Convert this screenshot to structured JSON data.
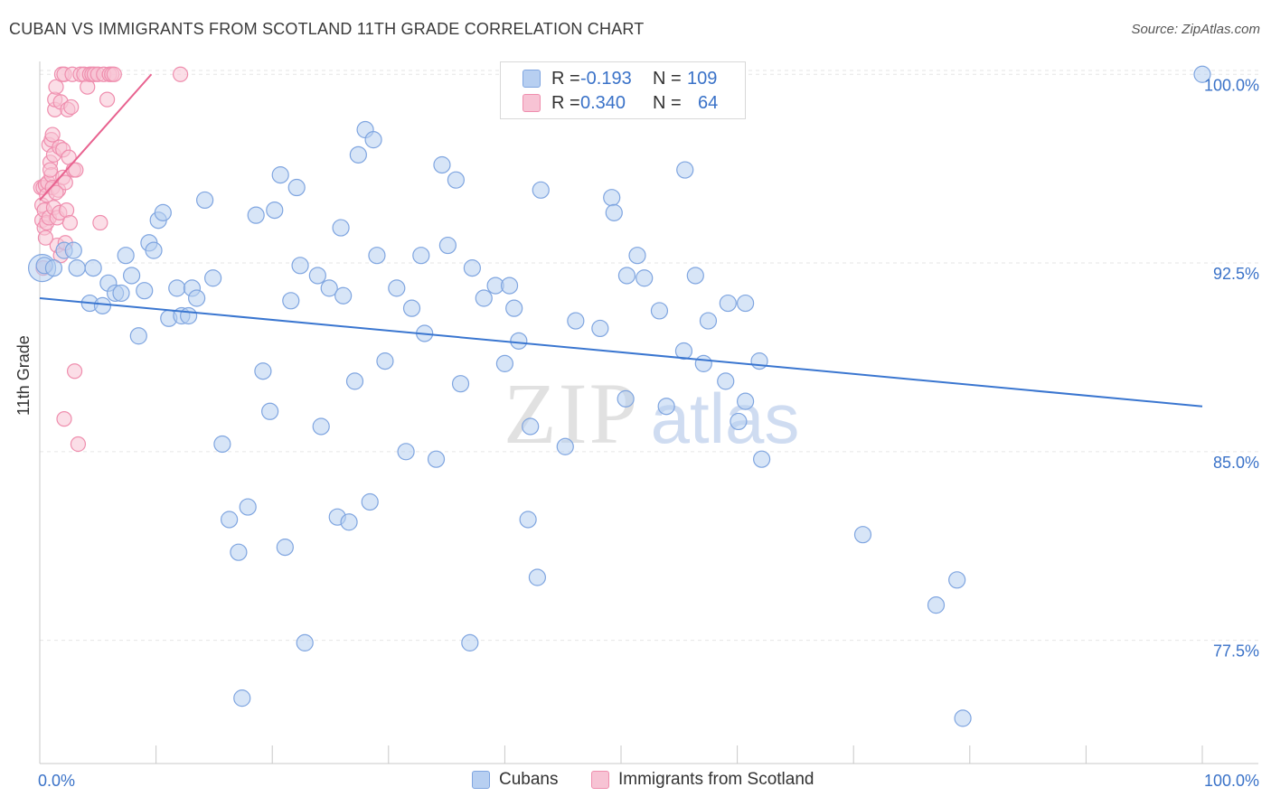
{
  "title": "CUBAN VS IMMIGRANTS FROM SCOTLAND 11TH GRADE CORRELATION CHART",
  "source": "Source: ZipAtlas.com",
  "watermark": {
    "zip": "ZIP",
    "atlas": "atlas"
  },
  "legend": {
    "rows": [
      {
        "r_label": "R =",
        "r_value": "-0.193",
        "n_label": "N =",
        "n_value": "109"
      },
      {
        "r_label": "R =",
        "r_value": "0.340",
        "n_label": "N =",
        "n_value": "64"
      }
    ]
  },
  "bottom_legend": [
    "Cubans",
    "Immigrants from Scotland"
  ],
  "colors": {
    "blue": "#3a76d0",
    "blue_fill": "#b7cff1",
    "blue_stroke": "#7fa5e0",
    "pink": "#e8628f",
    "pink_fill": "#f7c3d4",
    "pink_stroke": "#ef8eae",
    "grid": "#e6e6e6",
    "axis_label": "#3a72c8"
  },
  "chart_data": {
    "type": "scatter",
    "title": "CUBAN VS IMMIGRANTS FROM SCOTLAND 11TH GRADE CORRELATION CHART",
    "xlabel": "",
    "ylabel": "11th Grade",
    "xlim": [
      0,
      100
    ],
    "ylim": [
      72.6,
      100.8
    ],
    "x_tick_labels": [
      "0.0%",
      "100.0%"
    ],
    "y_ticks": [
      77.5,
      85.0,
      92.5,
      100.0
    ],
    "y_tick_labels": [
      "77.5%",
      "85.0%",
      "92.5%",
      "100.0%"
    ],
    "grid": "horizontal dashed",
    "legend_placement": "top-center",
    "series": [
      {
        "name": "Cubans",
        "color": "#3a76d0",
        "r": -0.193,
        "n": 109,
        "trend": {
          "x": [
            0,
            100
          ],
          "y": [
            91.1,
            86.8
          ]
        },
        "points": [
          [
            0.2,
            92.3
          ],
          [
            0.4,
            92.4
          ],
          [
            1.2,
            92.3
          ],
          [
            2.1,
            93.0
          ],
          [
            2.9,
            93.0
          ],
          [
            3.2,
            92.3
          ],
          [
            4.3,
            90.9
          ],
          [
            4.6,
            92.3
          ],
          [
            5.4,
            90.8
          ],
          [
            5.9,
            91.7
          ],
          [
            6.5,
            91.3
          ],
          [
            7.0,
            91.3
          ],
          [
            7.4,
            92.8
          ],
          [
            7.9,
            92.0
          ],
          [
            8.5,
            89.6
          ],
          [
            9.0,
            91.4
          ],
          [
            9.4,
            93.3
          ],
          [
            9.8,
            93.0
          ],
          [
            10.2,
            94.2
          ],
          [
            10.6,
            94.5
          ],
          [
            11.1,
            90.3
          ],
          [
            11.8,
            91.5
          ],
          [
            12.2,
            90.4
          ],
          [
            12.8,
            90.4
          ],
          [
            13.1,
            91.5
          ],
          [
            13.5,
            91.1
          ],
          [
            14.2,
            95.0
          ],
          [
            14.9,
            91.9
          ],
          [
            15.7,
            85.3
          ],
          [
            16.3,
            82.3
          ],
          [
            17.1,
            81.0
          ],
          [
            17.4,
            75.2
          ],
          [
            17.9,
            82.8
          ],
          [
            18.6,
            94.4
          ],
          [
            19.2,
            88.2
          ],
          [
            19.8,
            86.6
          ],
          [
            20.2,
            94.6
          ],
          [
            20.7,
            96.0
          ],
          [
            21.1,
            81.2
          ],
          [
            21.6,
            91.0
          ],
          [
            22.1,
            95.5
          ],
          [
            22.4,
            92.4
          ],
          [
            22.8,
            77.4
          ],
          [
            23.9,
            92.0
          ],
          [
            24.2,
            86.0
          ],
          [
            24.9,
            91.5
          ],
          [
            25.6,
            82.4
          ],
          [
            25.9,
            93.9
          ],
          [
            26.1,
            91.2
          ],
          [
            26.6,
            82.2
          ],
          [
            27.1,
            87.8
          ],
          [
            27.4,
            96.8
          ],
          [
            28.0,
            97.8
          ],
          [
            28.4,
            83.0
          ],
          [
            28.7,
            97.4
          ],
          [
            29.0,
            92.8
          ],
          [
            29.7,
            88.6
          ],
          [
            30.7,
            91.5
          ],
          [
            31.5,
            85.0
          ],
          [
            32.0,
            90.7
          ],
          [
            32.8,
            92.8
          ],
          [
            33.1,
            89.7
          ],
          [
            34.1,
            84.7
          ],
          [
            34.6,
            96.4
          ],
          [
            35.1,
            93.2
          ],
          [
            35.8,
            95.8
          ],
          [
            36.2,
            87.7
          ],
          [
            37.0,
            77.4
          ],
          [
            37.2,
            92.3
          ],
          [
            38.2,
            91.1
          ],
          [
            39.2,
            91.6
          ],
          [
            40.0,
            88.5
          ],
          [
            40.4,
            91.6
          ],
          [
            40.8,
            90.7
          ],
          [
            41.2,
            89.4
          ],
          [
            42.0,
            82.3
          ],
          [
            42.2,
            86.0
          ],
          [
            42.8,
            80.0
          ],
          [
            43.1,
            95.4
          ],
          [
            45.2,
            85.2
          ],
          [
            46.1,
            90.2
          ],
          [
            48.2,
            89.9
          ],
          [
            49.2,
            95.1
          ],
          [
            49.4,
            94.5
          ],
          [
            50.4,
            87.1
          ],
          [
            50.5,
            92.0
          ],
          [
            51.4,
            92.8
          ],
          [
            52.0,
            91.9
          ],
          [
            53.3,
            90.6
          ],
          [
            53.9,
            86.8
          ],
          [
            55.4,
            89.0
          ],
          [
            55.5,
            96.2
          ],
          [
            56.4,
            92.0
          ],
          [
            57.1,
            88.5
          ],
          [
            57.5,
            90.2
          ],
          [
            59.0,
            87.8
          ],
          [
            59.2,
            90.9
          ],
          [
            60.1,
            86.2
          ],
          [
            60.7,
            90.9
          ],
          [
            60.7,
            87.0
          ],
          [
            61.9,
            88.6
          ],
          [
            62.1,
            84.7
          ],
          [
            70.8,
            81.7
          ],
          [
            77.1,
            78.9
          ],
          [
            78.9,
            79.9
          ],
          [
            79.4,
            74.4
          ],
          [
            100.0,
            100.0
          ]
        ]
      },
      {
        "name": "Immigrants from Scotland",
        "color": "#e8628f",
        "r": 0.34,
        "n": 64,
        "trend": {
          "x": [
            0,
            9.6
          ],
          "y": [
            95.0,
            100.0
          ]
        },
        "points": [
          [
            0.1,
            95.5
          ],
          [
            0.2,
            94.8
          ],
          [
            0.2,
            94.2
          ],
          [
            0.3,
            95.5
          ],
          [
            0.4,
            93.9
          ],
          [
            0.4,
            94.6
          ],
          [
            0.5,
            95.6
          ],
          [
            0.6,
            94.1
          ],
          [
            0.6,
            95.2
          ],
          [
            0.7,
            95.7
          ],
          [
            0.8,
            94.3
          ],
          [
            0.8,
            97.2
          ],
          [
            0.9,
            96.5
          ],
          [
            1.0,
            96.0
          ],
          [
            1.0,
            97.4
          ],
          [
            1.1,
            97.6
          ],
          [
            1.1,
            95.5
          ],
          [
            1.2,
            94.7
          ],
          [
            1.2,
            96.8
          ],
          [
            1.3,
            98.6
          ],
          [
            1.3,
            99.0
          ],
          [
            1.4,
            99.5
          ],
          [
            1.5,
            94.3
          ],
          [
            1.5,
            93.2
          ],
          [
            1.6,
            95.4
          ],
          [
            1.7,
            97.1
          ],
          [
            1.7,
            94.5
          ],
          [
            1.8,
            92.8
          ],
          [
            1.8,
            98.9
          ],
          [
            1.9,
            100.0
          ],
          [
            2.0,
            95.9
          ],
          [
            2.0,
            97.0
          ],
          [
            2.1,
            100.0
          ],
          [
            2.1,
            86.3
          ],
          [
            2.2,
            95.7
          ],
          [
            2.2,
            93.3
          ],
          [
            2.3,
            94.6
          ],
          [
            2.4,
            98.6
          ],
          [
            2.5,
            96.7
          ],
          [
            2.6,
            94.1
          ],
          [
            2.7,
            98.7
          ],
          [
            2.8,
            100.0
          ],
          [
            2.9,
            96.2
          ],
          [
            3.0,
            88.2
          ],
          [
            3.1,
            96.2
          ],
          [
            3.3,
            85.3
          ],
          [
            3.5,
            100.0
          ],
          [
            3.8,
            100.0
          ],
          [
            4.1,
            99.5
          ],
          [
            4.3,
            100.0
          ],
          [
            4.5,
            100.0
          ],
          [
            4.7,
            100.0
          ],
          [
            5.0,
            100.0
          ],
          [
            5.2,
            94.1
          ],
          [
            5.5,
            100.0
          ],
          [
            5.8,
            99.0
          ],
          [
            6.0,
            100.0
          ],
          [
            6.2,
            100.0
          ],
          [
            6.4,
            100.0
          ],
          [
            12.1,
            100.0
          ],
          [
            0.3,
            92.3
          ],
          [
            0.5,
            93.5
          ],
          [
            0.9,
            96.2
          ],
          [
            1.4,
            95.3
          ]
        ]
      }
    ]
  }
}
